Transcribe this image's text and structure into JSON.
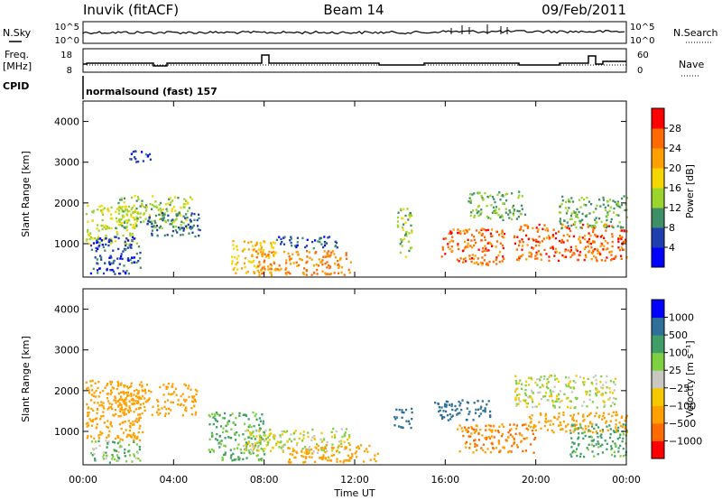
{
  "header": {
    "station": "Inuvik (fitACF)",
    "beam": "Beam 14",
    "date": "09/Feb/2011"
  },
  "strips": {
    "nsky_label": "N.Sky",
    "nsearch_label": "N.Search",
    "nsky_ticks": [
      "10^5",
      "10^0"
    ],
    "nsearch_ticks": [
      "10^5",
      "10^0"
    ],
    "freq_label_line1": "Freq.",
    "freq_label_line2": "[MHz]",
    "freq_ticks": [
      "18",
      "8"
    ],
    "nave_label": "Nave",
    "nave_ticks": [
      "60",
      "0"
    ],
    "cpid_label": "CPID",
    "cpid_value": "normalsound (fast) 157"
  },
  "chart_data": [
    {
      "type": "heatmap",
      "name": "power-panel",
      "ylabel": "Slant Range [km]",
      "xlabel": "Time UT",
      "x_ticks": [
        "00:00",
        "04:00",
        "08:00",
        "12:00",
        "16:00",
        "20:00",
        "00:00"
      ],
      "xlim_hours": [
        0,
        24
      ],
      "y_ticks": [
        1000,
        2000,
        3000,
        4000
      ],
      "ylim": [
        180,
        4500
      ],
      "colorbar": {
        "label": "Power [dB]",
        "ticks": [
          "28",
          "24",
          "20",
          "16",
          "12",
          "8",
          "4"
        ],
        "colors": [
          "#0000ff",
          "#1f3fb0",
          "#3f8f66",
          "#9bd52b",
          "#f5d600",
          "#ffa000",
          "#ff6a00",
          "#ff0000"
        ]
      },
      "blobs": [
        {
          "t0": 0.1,
          "t1": 2.4,
          "r0": 1000,
          "r1": 2000,
          "v": 16
        },
        {
          "t0": 1.4,
          "t1": 4.8,
          "r0": 1400,
          "r1": 2200,
          "v": 14
        },
        {
          "t0": 2.8,
          "t1": 5.2,
          "r0": 1200,
          "r1": 1800,
          "v": 8
        },
        {
          "t0": 0.3,
          "t1": 2.5,
          "r0": 280,
          "r1": 1200,
          "v": 6
        },
        {
          "t0": 6.5,
          "t1": 8.5,
          "r0": 300,
          "r1": 1100,
          "v": 20
        },
        {
          "t0": 7.5,
          "t1": 11.8,
          "r0": 250,
          "r1": 850,
          "v": 24
        },
        {
          "t0": 8.5,
          "t1": 11.2,
          "r0": 900,
          "r1": 1200,
          "v": 6
        },
        {
          "t0": 13.8,
          "t1": 14.5,
          "r0": 700,
          "r1": 1900,
          "v": 14
        },
        {
          "t0": 15.8,
          "t1": 18.6,
          "r0": 500,
          "r1": 1400,
          "v": 26
        },
        {
          "t0": 17.0,
          "t1": 19.5,
          "r0": 1600,
          "r1": 2300,
          "v": 12
        },
        {
          "t0": 19.0,
          "t1": 24.0,
          "r0": 600,
          "r1": 1500,
          "v": 26
        },
        {
          "t0": 21.0,
          "t1": 24.0,
          "r0": 1400,
          "r1": 2200,
          "v": 12
        },
        {
          "t0": 2.0,
          "t1": 3.0,
          "r0": 3000,
          "r1": 3300,
          "v": 6
        }
      ]
    },
    {
      "type": "heatmap",
      "name": "velocity-panel",
      "ylabel": "Slant Range [km]",
      "xlabel": "Time UT",
      "x_ticks": [
        "00:00",
        "04:00",
        "08:00",
        "12:00",
        "16:00",
        "20:00",
        "00:00"
      ],
      "xlim_hours": [
        0,
        24
      ],
      "y_ticks": [
        1000,
        2000,
        3000,
        4000
      ],
      "ylim": [
        180,
        4500
      ],
      "colorbar": {
        "label": "Velocity [m s⁻¹]",
        "ticks": [
          "1000",
          "500",
          "100",
          "25",
          "−25",
          "−100",
          "−500",
          "−1000"
        ],
        "colors": [
          "#ff0000",
          "#ff6a00",
          "#ffa000",
          "#f5c800",
          "#c8c8c0",
          "#7fd040",
          "#3f9f66",
          "#2f6f99",
          "#0000ff"
        ]
      },
      "blobs": [
        {
          "t0": 0.1,
          "t1": 2.6,
          "r0": 800,
          "r1": 2300,
          "v": -400
        },
        {
          "t0": 1.5,
          "t1": 5.0,
          "r0": 1400,
          "r1": 2200,
          "v": -300
        },
        {
          "t0": 0.3,
          "t1": 2.5,
          "r0": 250,
          "r1": 800,
          "v": 80
        },
        {
          "t0": 5.5,
          "t1": 8.0,
          "r0": 300,
          "r1": 1500,
          "v": 120
        },
        {
          "t0": 7.0,
          "t1": 11.8,
          "r0": 500,
          "r1": 1100,
          "v": 0
        },
        {
          "t0": 9.0,
          "t1": 13.0,
          "r0": 250,
          "r1": 700,
          "v": -250
        },
        {
          "t0": 13.7,
          "t1": 14.5,
          "r0": 1100,
          "r1": 1600,
          "v": 800
        },
        {
          "t0": 15.5,
          "t1": 18.0,
          "r0": 1300,
          "r1": 1800,
          "v": 600
        },
        {
          "t0": 16.5,
          "t1": 20.0,
          "r0": 500,
          "r1": 1200,
          "v": -500
        },
        {
          "t0": 19.5,
          "t1": 24.0,
          "r0": 1000,
          "r1": 1500,
          "v": -400
        },
        {
          "t0": 21.5,
          "t1": 24.0,
          "r0": 400,
          "r1": 1200,
          "v": 150
        },
        {
          "t0": 19.0,
          "t1": 23.5,
          "r0": 1600,
          "r1": 2400,
          "v": 10
        }
      ]
    }
  ]
}
